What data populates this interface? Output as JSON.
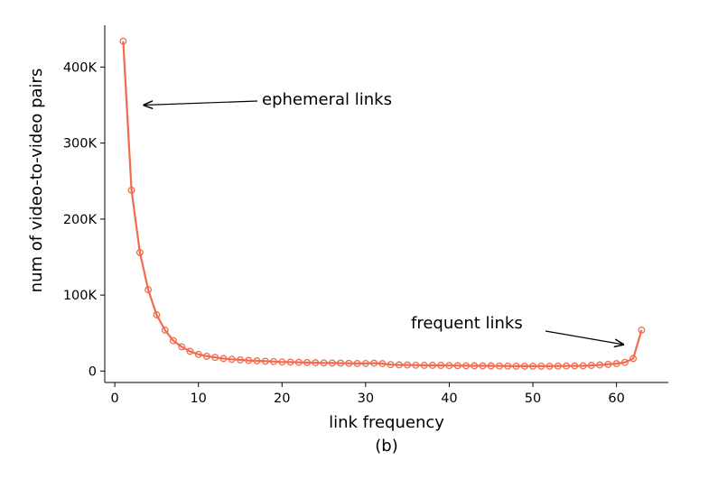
{
  "chart_data": {
    "type": "line",
    "xlabel": "link frequency",
    "ylabel": "num of video-to-video pairs",
    "caption": "(b)",
    "xlim": [
      -1.2,
      66.2
    ],
    "ylim": [
      -15000,
      455000
    ],
    "x_ticks": [
      0,
      10,
      20,
      30,
      40,
      50,
      60
    ],
    "x_tick_labels": [
      "0",
      "10",
      "20",
      "30",
      "40",
      "50",
      "60"
    ],
    "y_ticks": [
      0,
      100000,
      200000,
      300000,
      400000
    ],
    "y_tick_labels": [
      "0",
      "100K",
      "200K",
      "300K",
      "400K"
    ],
    "grid": false,
    "color": "#f26b4f",
    "series": [
      {
        "x": [
          1,
          2,
          3,
          4,
          5,
          6,
          7,
          8,
          9,
          10,
          11,
          12,
          13,
          14,
          15,
          16,
          17,
          18,
          19,
          20,
          21,
          22,
          23,
          24,
          25,
          26,
          27,
          28,
          29,
          30,
          31,
          32,
          33,
          34,
          35,
          36,
          37,
          38,
          39,
          40,
          41,
          42,
          43,
          44,
          45,
          46,
          47,
          48,
          49,
          50,
          51,
          52,
          53,
          54,
          55,
          56,
          57,
          58,
          59,
          60,
          61,
          62,
          63
        ],
        "values": [
          434000,
          238000,
          156000,
          107000,
          74000,
          54000,
          40000,
          32000,
          26000,
          22000,
          19500,
          18000,
          16500,
          15500,
          14800,
          14000,
          13500,
          13000,
          12500,
          12000,
          11800,
          11500,
          11200,
          11000,
          10800,
          10600,
          10400,
          10200,
          10000,
          10000,
          10400,
          9800,
          8500,
          8200,
          8000,
          7800,
          7600,
          7500,
          7400,
          7300,
          7200,
          7100,
          7000,
          6900,
          6800,
          6700,
          6600,
          6500,
          6500,
          6500,
          6500,
          6500,
          6600,
          6700,
          6800,
          7000,
          7400,
          8000,
          8800,
          9800,
          11500,
          16500,
          54000
        ]
      }
    ],
    "annotations": [
      {
        "text": "ephemeral links",
        "target": [
          3.5,
          350000
        ]
      },
      {
        "text": "frequent links",
        "target": [
          60.8,
          35000
        ]
      }
    ]
  }
}
